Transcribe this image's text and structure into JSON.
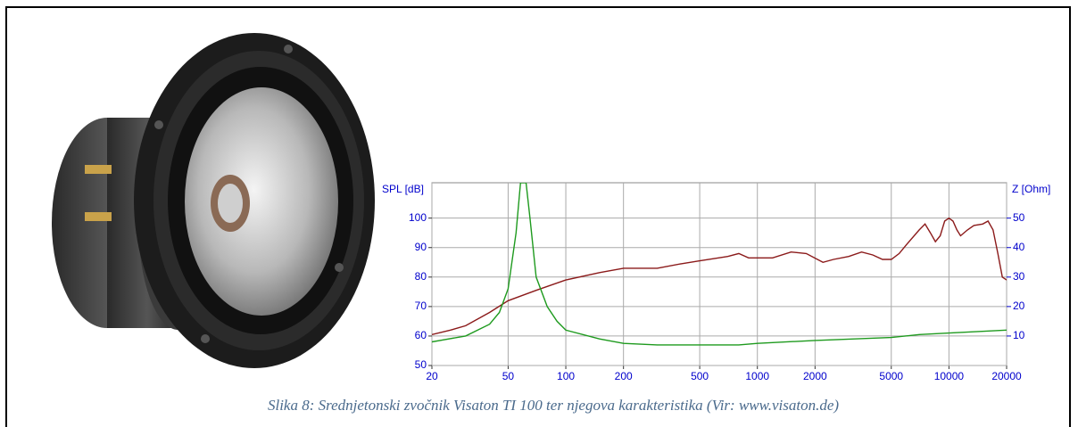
{
  "chart_data": {
    "type": "line",
    "caption": "Slika 8: Srednjetonski zvočnik Visaton TI 100 ter njegova karakteristika (Vir: www.visaton.de)",
    "y_label": "SPL [dB]",
    "y2_label": "Z [Ohm]",
    "xscale": "log",
    "xlim": [
      20,
      20000
    ],
    "xticks": [
      20,
      50,
      100,
      200,
      500,
      1000,
      2000,
      5000,
      10000,
      20000
    ],
    "ylim": [
      50,
      112
    ],
    "yticks": [
      50,
      60,
      70,
      80,
      90,
      100
    ],
    "y2lim": [
      0,
      62
    ],
    "y2ticks": [
      10,
      20,
      30,
      40,
      50
    ],
    "grid": true,
    "series": [
      {
        "color": "#8b1a1a",
        "x": [
          20,
          25,
          30,
          40,
          50,
          70,
          100,
          150,
          200,
          300,
          400,
          500,
          700,
          800,
          900,
          1000,
          1200,
          1500,
          1800,
          2200,
          2500,
          3000,
          3500,
          4000,
          4500,
          5000,
          5500,
          6000,
          7000,
          7500,
          8000,
          8500,
          9000,
          9500,
          10000,
          10500,
          11000,
          11500,
          12500,
          13500,
          15000,
          16000,
          17000,
          18000,
          19000,
          20000
        ],
        "values": [
          60.5,
          62,
          63.5,
          68,
          72,
          75.5,
          79,
          81.5,
          83,
          83,
          84.5,
          85.5,
          87,
          88,
          86.5,
          86.5,
          86.5,
          88.5,
          88,
          85,
          86,
          87,
          88.5,
          87.5,
          86,
          86,
          88,
          91,
          96,
          98,
          95,
          92,
          94,
          99,
          100,
          99,
          96,
          94,
          96,
          97.5,
          98,
          99,
          96,
          88,
          80,
          79
        ]
      },
      {
        "color": "#1e9a1e",
        "axis": "y2",
        "x": [
          20,
          30,
          40,
          45,
          50,
          55,
          58,
          62,
          65,
          70,
          80,
          90,
          100,
          150,
          200,
          300,
          500,
          800,
          1000,
          2000,
          5000,
          7000,
          10000,
          20000
        ],
        "values": [
          8,
          10,
          14,
          18,
          26,
          45,
          62,
          62,
          50,
          30,
          20,
          15,
          12,
          9,
          7.5,
          7,
          7,
          7,
          7.5,
          8.5,
          9.5,
          10.5,
          11,
          12
        ]
      }
    ]
  }
}
